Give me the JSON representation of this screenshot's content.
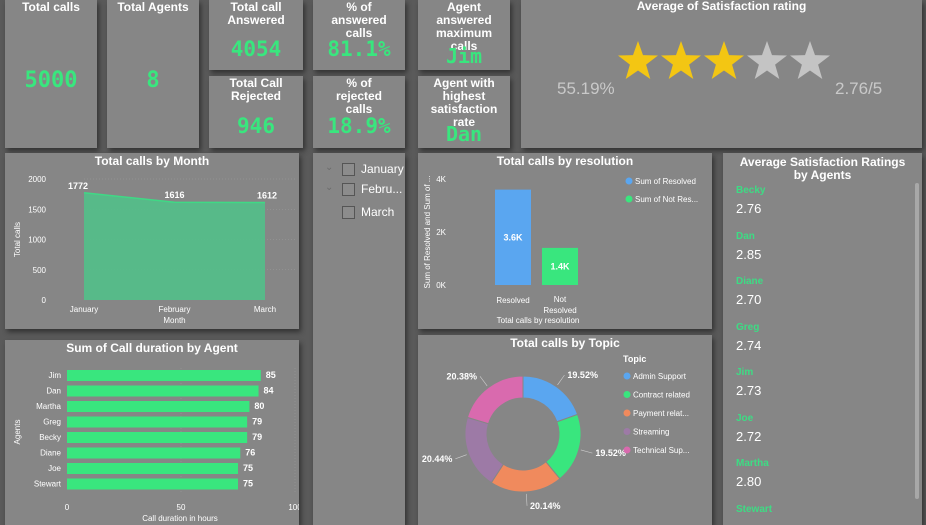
{
  "kpis": {
    "total_calls": {
      "title": "Total calls",
      "value": "5000"
    },
    "total_agents": {
      "title": "Total Agents",
      "value": "8"
    },
    "total_answered": {
      "title": "Total call Answered",
      "value": "4054"
    },
    "total_rejected": {
      "title": "Total Call Rejected",
      "value": "946"
    },
    "pct_answered": {
      "title": "% of answered calls",
      "value": "81.1%"
    },
    "pct_rejected": {
      "title": "% of rejected calls",
      "value": "18.9%"
    },
    "agent_max_calls": {
      "title": "Agent answered maximum calls",
      "value": "Jim"
    },
    "agent_top_satisfaction": {
      "title": "Agent with highest satisfaction rate",
      "value": "Dan"
    }
  },
  "satisfaction": {
    "title": "Average of Satisfaction rating",
    "percent": "55.19%",
    "score": "2.76/5",
    "stars_filled": 3,
    "stars_total": 5,
    "star_color": "#f3c613"
  },
  "slicer": {
    "items": [
      "January",
      "Febru...",
      "March"
    ]
  },
  "agents_panel": {
    "title": "Average Satisfaction Ratings by Agents",
    "agents": [
      {
        "name": "Becky",
        "value": "2.76"
      },
      {
        "name": "Dan",
        "value": "2.85"
      },
      {
        "name": "Diane",
        "value": "2.70"
      },
      {
        "name": "Greg",
        "value": "2.74"
      },
      {
        "name": "Jim",
        "value": "2.73"
      },
      {
        "name": "Joe",
        "value": "2.72"
      },
      {
        "name": "Martha",
        "value": "2.80"
      },
      {
        "name": "Stewart",
        "value": ""
      }
    ]
  },
  "colors": {
    "accent_green": "#39e67e",
    "blue": "#5aa6f0",
    "orange": "#f08a5d",
    "purple": "#9d7aa6",
    "pink": "#d96aae",
    "card": "#868686"
  },
  "chart_data": [
    {
      "id": "calls_by_month",
      "type": "area",
      "title": "Total calls by Month",
      "xlabel": "Month",
      "ylabel": "Total calls",
      "categories": [
        "January",
        "February",
        "March"
      ],
      "values": [
        1772,
        1616,
        1612
      ],
      "data_labels": [
        "1772",
        "1616",
        "1612"
      ],
      "yticks": [
        "0",
        "500",
        "1000",
        "1500",
        "2000"
      ],
      "ylim": [
        0,
        2000
      ]
    },
    {
      "id": "calls_by_resolution",
      "type": "bar",
      "title": "Total calls by resolution",
      "xlabel": "Total calls by resolution",
      "ylabel": "Sum of Resolved and Sum of ...",
      "categories": [
        "Resolved",
        "Not Resolved"
      ],
      "values": [
        3600,
        1400
      ],
      "data_labels": [
        "3.6K",
        "1.4K"
      ],
      "yticks": [
        "0K",
        "2K",
        "4K"
      ],
      "ylim": [
        0,
        4000
      ],
      "legend": [
        "Sum of Resolved",
        "Sum of Not Res..."
      ],
      "legend_position": "top-right"
    },
    {
      "id": "duration_by_agent",
      "type": "bar",
      "title": "Sum of Call duration by Agent",
      "xlabel": "Call duration in hours",
      "ylabel": "Agents",
      "categories": [
        "Jim",
        "Dan",
        "Martha",
        "Greg",
        "Becky",
        "Diane",
        "Joe",
        "Stewart"
      ],
      "values": [
        85,
        84,
        80,
        79,
        79,
        76,
        75,
        75
      ],
      "xticks": [
        "0",
        "50",
        "100"
      ],
      "xlim": [
        0,
        100
      ]
    },
    {
      "id": "calls_by_topic",
      "type": "pie",
      "title": "Total calls by Topic",
      "legend_title": "Topic",
      "categories": [
        "Admin Support",
        "Contract related",
        "Payment related",
        "Streaming",
        "Technical Support"
      ],
      "legend": [
        "Admin Support",
        "Contract related",
        "Payment relat...",
        "Streaming",
        "Technical Sup..."
      ],
      "values": [
        19.52,
        19.52,
        20.14,
        20.44,
        20.38
      ],
      "data_labels": [
        "19.52%",
        "19.52%",
        "20.14%",
        "20.44%",
        "20.38%"
      ],
      "colors": [
        "#5aa6f0",
        "#39e67e",
        "#f08a5d",
        "#9d7aa6",
        "#d96aae"
      ]
    }
  ]
}
